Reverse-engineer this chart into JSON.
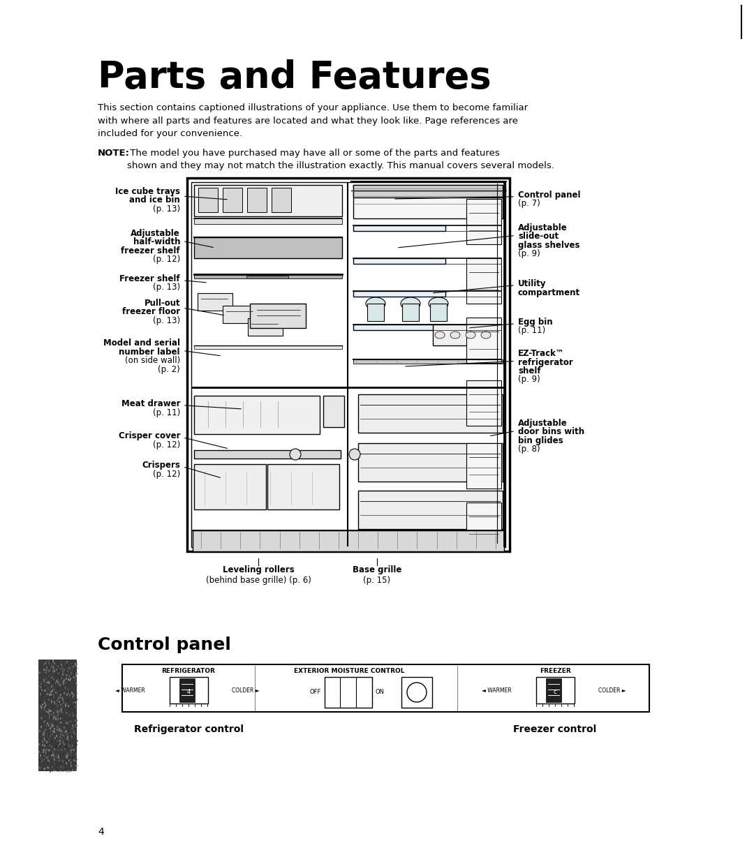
{
  "title": "Parts and Features",
  "intro_text": "This section contains captioned illustrations of your appliance. Use them to become familiar\nwith where all parts and features are located and what they look like. Page references are\nincluded for your convenience.",
  "note_bold": "NOTE:",
  "note_text": " The model you have purchased may have all or some of the parts and features\nshown and they may not match the illustration exactly. This manual covers several models.",
  "section2_title": "Control panel",
  "bg_color": "#ffffff",
  "text_color": "#000000",
  "page_number": "4",
  "title_fontsize": 38,
  "body_fontsize": 9.5,
  "label_fontsize": 8.5,
  "label_bold_fontsize": 8.5
}
